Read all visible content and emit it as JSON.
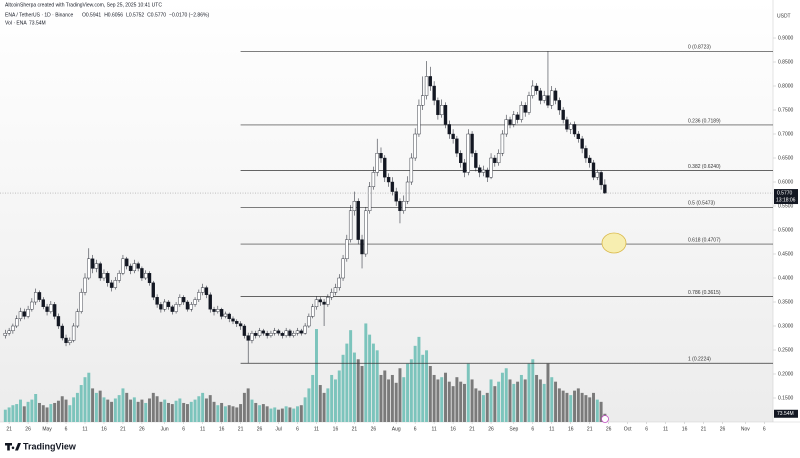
{
  "chart_data": {
    "type": "candlestick",
    "title": "AltcoinSherpa created with TradingView.com, Sep 25, 2025 10:41 UTC",
    "symbol": "ENA / TetherUS · 1D · Binance",
    "ohlc_labels": [
      "O0.5941",
      "H0.6056",
      "L0.5752",
      "C0.5770",
      "−0.0170 (−2.86%)"
    ],
    "volume_title": "Vol · ENA",
    "volume_value_label": "73.54M",
    "currency": "USDT",
    "brand": "TradingView",
    "countdown": "13:18:06",
    "up_color": "#ffffff",
    "down_color": "#131722",
    "volume_up_color": "#7cc4bc",
    "volume_down_color": "#7a7a7a",
    "candles": [
      [
        0.28,
        0.292,
        0.274,
        0.285
      ],
      [
        0.285,
        0.296,
        0.28,
        0.29
      ],
      [
        0.29,
        0.305,
        0.284,
        0.3
      ],
      [
        0.3,
        0.322,
        0.296,
        0.315
      ],
      [
        0.315,
        0.338,
        0.31,
        0.33
      ],
      [
        0.33,
        0.336,
        0.314,
        0.32
      ],
      [
        0.32,
        0.342,
        0.316,
        0.335
      ],
      [
        0.335,
        0.358,
        0.33,
        0.35
      ],
      [
        0.35,
        0.378,
        0.344,
        0.37
      ],
      [
        0.37,
        0.374,
        0.35,
        0.355
      ],
      [
        0.355,
        0.36,
        0.335,
        0.34
      ],
      [
        0.34,
        0.346,
        0.322,
        0.33
      ],
      [
        0.33,
        0.352,
        0.326,
        0.345
      ],
      [
        0.345,
        0.35,
        0.314,
        0.32
      ],
      [
        0.32,
        0.326,
        0.294,
        0.3
      ],
      [
        0.3,
        0.305,
        0.27,
        0.275
      ],
      [
        0.275,
        0.282,
        0.258,
        0.265
      ],
      [
        0.265,
        0.276,
        0.26,
        0.27
      ],
      [
        0.27,
        0.306,
        0.266,
        0.3
      ],
      [
        0.3,
        0.336,
        0.296,
        0.33
      ],
      [
        0.33,
        0.378,
        0.326,
        0.37
      ],
      [
        0.37,
        0.41,
        0.364,
        0.4
      ],
      [
        0.4,
        0.462,
        0.396,
        0.44
      ],
      [
        0.44,
        0.448,
        0.41,
        0.42
      ],
      [
        0.42,
        0.438,
        0.412,
        0.43
      ],
      [
        0.43,
        0.434,
        0.394,
        0.4
      ],
      [
        0.4,
        0.418,
        0.394,
        0.41
      ],
      [
        0.41,
        0.414,
        0.382,
        0.39
      ],
      [
        0.39,
        0.396,
        0.372,
        0.38
      ],
      [
        0.38,
        0.402,
        0.376,
        0.395
      ],
      [
        0.395,
        0.416,
        0.39,
        0.41
      ],
      [
        0.41,
        0.448,
        0.406,
        0.44
      ],
      [
        0.44,
        0.444,
        0.418,
        0.425
      ],
      [
        0.425,
        0.43,
        0.408,
        0.415
      ],
      [
        0.415,
        0.438,
        0.41,
        0.43
      ],
      [
        0.43,
        0.434,
        0.414,
        0.42
      ],
      [
        0.42,
        0.424,
        0.394,
        0.4
      ],
      [
        0.4,
        0.416,
        0.396,
        0.41
      ],
      [
        0.41,
        0.414,
        0.384,
        0.39
      ],
      [
        0.39,
        0.394,
        0.354,
        0.36
      ],
      [
        0.36,
        0.366,
        0.338,
        0.345
      ],
      [
        0.345,
        0.35,
        0.328,
        0.335
      ],
      [
        0.335,
        0.356,
        0.33,
        0.35
      ],
      [
        0.35,
        0.354,
        0.334,
        0.34
      ],
      [
        0.34,
        0.344,
        0.324,
        0.33
      ],
      [
        0.33,
        0.35,
        0.326,
        0.345
      ],
      [
        0.345,
        0.366,
        0.34,
        0.36
      ],
      [
        0.36,
        0.364,
        0.344,
        0.35
      ],
      [
        0.35,
        0.354,
        0.33,
        0.335
      ],
      [
        0.335,
        0.35,
        0.33,
        0.345
      ],
      [
        0.345,
        0.36,
        0.34,
        0.355
      ],
      [
        0.355,
        0.376,
        0.35,
        0.37
      ],
      [
        0.37,
        0.388,
        0.364,
        0.38
      ],
      [
        0.38,
        0.384,
        0.358,
        0.365
      ],
      [
        0.365,
        0.37,
        0.328,
        0.335
      ],
      [
        0.335,
        0.34,
        0.322,
        0.33
      ],
      [
        0.33,
        0.342,
        0.326,
        0.335
      ],
      [
        0.335,
        0.338,
        0.314,
        0.32
      ],
      [
        0.32,
        0.33,
        0.316,
        0.325
      ],
      [
        0.325,
        0.328,
        0.308,
        0.315
      ],
      [
        0.315,
        0.32,
        0.304,
        0.31
      ],
      [
        0.31,
        0.314,
        0.298,
        0.305
      ],
      [
        0.305,
        0.31,
        0.292,
        0.3
      ],
      [
        0.3,
        0.304,
        0.274,
        0.28
      ],
      [
        0.28,
        0.286,
        0.2224,
        0.27
      ],
      [
        0.27,
        0.29,
        0.264,
        0.285
      ],
      [
        0.285,
        0.29,
        0.274,
        0.28
      ],
      [
        0.28,
        0.296,
        0.276,
        0.29
      ],
      [
        0.29,
        0.294,
        0.28,
        0.285
      ],
      [
        0.285,
        0.29,
        0.274,
        0.28
      ],
      [
        0.28,
        0.29,
        0.276,
        0.285
      ],
      [
        0.285,
        0.296,
        0.28,
        0.29
      ],
      [
        0.29,
        0.294,
        0.28,
        0.285
      ],
      [
        0.285,
        0.288,
        0.274,
        0.28
      ],
      [
        0.28,
        0.296,
        0.276,
        0.29
      ],
      [
        0.29,
        0.294,
        0.276,
        0.28
      ],
      [
        0.28,
        0.29,
        0.276,
        0.285
      ],
      [
        0.285,
        0.296,
        0.28,
        0.29
      ],
      [
        0.29,
        0.294,
        0.28,
        0.285
      ],
      [
        0.285,
        0.306,
        0.282,
        0.3
      ],
      [
        0.3,
        0.326,
        0.296,
        0.32
      ],
      [
        0.32,
        0.346,
        0.316,
        0.34
      ],
      [
        0.34,
        0.362,
        0.334,
        0.355
      ],
      [
        0.355,
        0.36,
        0.342,
        0.35
      ],
      [
        0.35,
        0.356,
        0.3,
        0.345
      ],
      [
        0.345,
        0.366,
        0.34,
        0.36
      ],
      [
        0.36,
        0.378,
        0.354,
        0.37
      ],
      [
        0.37,
        0.388,
        0.364,
        0.38
      ],
      [
        0.38,
        0.408,
        0.374,
        0.4
      ],
      [
        0.4,
        0.448,
        0.394,
        0.44
      ],
      [
        0.44,
        0.49,
        0.434,
        0.48
      ],
      [
        0.48,
        0.552,
        0.474,
        0.54
      ],
      [
        0.54,
        0.58,
        0.53,
        0.56
      ],
      [
        0.56,
        0.566,
        0.47,
        0.48
      ],
      [
        0.48,
        0.49,
        0.42,
        0.45
      ],
      [
        0.45,
        0.548,
        0.444,
        0.54
      ],
      [
        0.54,
        0.6,
        0.534,
        0.59
      ],
      [
        0.59,
        0.632,
        0.584,
        0.62
      ],
      [
        0.62,
        0.69,
        0.612,
        0.66
      ],
      [
        0.66,
        0.672,
        0.64,
        0.65
      ],
      [
        0.65,
        0.656,
        0.6,
        0.61
      ],
      [
        0.61,
        0.618,
        0.59,
        0.6
      ],
      [
        0.6,
        0.61,
        0.572,
        0.58
      ],
      [
        0.58,
        0.588,
        0.55,
        0.56
      ],
      [
        0.56,
        0.566,
        0.514,
        0.54
      ],
      [
        0.54,
        0.572,
        0.534,
        0.56
      ],
      [
        0.56,
        0.612,
        0.554,
        0.6
      ],
      [
        0.6,
        0.66,
        0.594,
        0.65
      ],
      [
        0.65,
        0.712,
        0.644,
        0.7
      ],
      [
        0.7,
        0.772,
        0.694,
        0.76
      ],
      [
        0.76,
        0.82,
        0.75,
        0.78
      ],
      [
        0.78,
        0.852,
        0.772,
        0.82
      ],
      [
        0.82,
        0.84,
        0.79,
        0.8
      ],
      [
        0.8,
        0.81,
        0.76,
        0.77
      ],
      [
        0.77,
        0.776,
        0.73,
        0.74
      ],
      [
        0.74,
        0.772,
        0.734,
        0.76
      ],
      [
        0.76,
        0.766,
        0.712,
        0.72
      ],
      [
        0.72,
        0.728,
        0.69,
        0.7
      ],
      [
        0.7,
        0.71,
        0.68,
        0.69
      ],
      [
        0.69,
        0.696,
        0.652,
        0.66
      ],
      [
        0.66,
        0.666,
        0.63,
        0.64
      ],
      [
        0.64,
        0.648,
        0.61,
        0.62
      ],
      [
        0.62,
        0.71,
        0.614,
        0.7
      ],
      [
        0.7,
        0.706,
        0.652,
        0.66
      ],
      [
        0.66,
        0.666,
        0.622,
        0.63
      ],
      [
        0.63,
        0.636,
        0.61,
        0.62
      ],
      [
        0.62,
        0.634,
        0.612,
        0.625
      ],
      [
        0.625,
        0.63,
        0.6,
        0.61
      ],
      [
        0.61,
        0.66,
        0.606,
        0.65
      ],
      [
        0.65,
        0.656,
        0.632,
        0.64
      ],
      [
        0.64,
        0.668,
        0.634,
        0.66
      ],
      [
        0.66,
        0.708,
        0.654,
        0.7
      ],
      [
        0.7,
        0.74,
        0.694,
        0.73
      ],
      [
        0.73,
        0.736,
        0.712,
        0.72
      ],
      [
        0.72,
        0.748,
        0.714,
        0.74
      ],
      [
        0.74,
        0.746,
        0.722,
        0.73
      ],
      [
        0.73,
        0.768,
        0.724,
        0.76
      ],
      [
        0.76,
        0.766,
        0.736,
        0.745
      ],
      [
        0.745,
        0.788,
        0.74,
        0.78
      ],
      [
        0.78,
        0.812,
        0.774,
        0.8
      ],
      [
        0.8,
        0.806,
        0.782,
        0.79
      ],
      [
        0.79,
        0.796,
        0.762,
        0.77
      ],
      [
        0.77,
        0.79,
        0.764,
        0.78
      ],
      [
        0.78,
        0.8723,
        0.754,
        0.76
      ],
      [
        0.76,
        0.8,
        0.752,
        0.79
      ],
      [
        0.79,
        0.796,
        0.762,
        0.77
      ],
      [
        0.77,
        0.776,
        0.74,
        0.75
      ],
      [
        0.75,
        0.756,
        0.722,
        0.73
      ],
      [
        0.73,
        0.736,
        0.704,
        0.71
      ],
      [
        0.71,
        0.724,
        0.7,
        0.72
      ],
      [
        0.72,
        0.726,
        0.694,
        0.7
      ],
      [
        0.7,
        0.706,
        0.682,
        0.69
      ],
      [
        0.69,
        0.696,
        0.66,
        0.67
      ],
      [
        0.67,
        0.676,
        0.64,
        0.65
      ],
      [
        0.65,
        0.656,
        0.63,
        0.64
      ],
      [
        0.64,
        0.646,
        0.604,
        0.61
      ],
      [
        0.61,
        0.626,
        0.604,
        0.62
      ],
      [
        0.62,
        0.624,
        0.584,
        0.594
      ],
      [
        0.5941,
        0.6056,
        0.5752,
        0.577
      ]
    ],
    "volume": [
      110,
      130,
      150,
      160,
      200,
      140,
      180,
      200,
      250,
      170,
      150,
      130,
      160,
      170,
      190,
      230,
      200,
      150,
      220,
      260,
      330,
      400,
      440,
      300,
      260,
      280,
      220,
      200,
      180,
      210,
      240,
      300,
      260,
      200,
      220,
      180,
      200,
      170,
      210,
      260,
      230,
      180,
      200,
      170,
      160,
      190,
      210,
      170,
      160,
      180,
      200,
      230,
      260,
      210,
      240,
      180,
      150,
      170,
      140,
      150,
      140,
      130,
      160,
      260,
      300,
      200,
      170,
      150,
      160,
      140,
      120,
      130,
      110,
      120,
      140,
      130,
      120,
      140,
      150,
      220,
      300,
      420,
      830,
      330,
      260,
      300,
      420,
      380,
      460,
      600,
      700,
      820,
      620,
      560,
      500,
      880,
      780,
      700,
      640,
      420,
      460,
      380,
      420,
      350,
      480,
      400,
      520,
      560,
      680,
      760,
      600,
      640,
      500,
      420,
      380,
      400,
      440,
      360,
      320,
      400,
      360,
      340,
      520,
      380,
      300,
      280,
      240,
      260,
      380,
      320,
      360,
      440,
      480,
      380,
      340,
      360,
      420,
      380,
      520,
      560,
      420,
      380,
      340,
      520,
      400,
      360,
      300,
      280,
      260,
      240,
      280,
      300,
      260,
      240,
      220,
      260,
      200,
      180,
      73.54
    ],
    "vlim": [
      0,
      1000
    ],
    "xlim": [
      -1.4,
      202.3
    ],
    "xticks": [
      {
        "value": 1,
        "label": "21"
      },
      {
        "value": 6,
        "label": "26"
      },
      {
        "value": 11,
        "label": "May"
      },
      {
        "value": 16,
        "label": "6"
      },
      {
        "value": 21,
        "label": "11"
      },
      {
        "value": 26,
        "label": "16"
      },
      {
        "value": 31,
        "label": "21"
      },
      {
        "value": 36,
        "label": "26"
      },
      {
        "value": 42,
        "label": "Jun"
      },
      {
        "value": 47,
        "label": "6"
      },
      {
        "value": 52,
        "label": "11"
      },
      {
        "value": 57,
        "label": "16"
      },
      {
        "value": 62,
        "label": "21"
      },
      {
        "value": 67,
        "label": "26"
      },
      {
        "value": 72,
        "label": "Jul"
      },
      {
        "value": 77,
        "label": "6"
      },
      {
        "value": 82,
        "label": "11"
      },
      {
        "value": 87,
        "label": "16"
      },
      {
        "value": 92,
        "label": "21"
      },
      {
        "value": 97,
        "label": "26"
      },
      {
        "value": 103,
        "label": "Aug"
      },
      {
        "value": 108,
        "label": "6"
      },
      {
        "value": 113,
        "label": "11"
      },
      {
        "value": 118,
        "label": "16"
      },
      {
        "value": 123,
        "label": "21"
      },
      {
        "value": 128,
        "label": "26"
      },
      {
        "value": 134,
        "label": "Sep"
      },
      {
        "value": 139,
        "label": "6"
      },
      {
        "value": 144,
        "label": "11"
      },
      {
        "value": 149,
        "label": "16"
      },
      {
        "value": 154,
        "label": "21"
      },
      {
        "value": 159,
        "label": "26"
      },
      {
        "value": 164,
        "label": "Oct"
      },
      {
        "value": 169,
        "label": "6"
      },
      {
        "value": 174,
        "label": "11"
      },
      {
        "value": 179,
        "label": "16"
      },
      {
        "value": 184,
        "label": "21"
      },
      {
        "value": 189,
        "label": "26"
      },
      {
        "value": 195,
        "label": "Nov"
      },
      {
        "value": 200,
        "label": "6"
      }
    ],
    "ylim": [
      0.1,
      0.9167
    ],
    "yticks": [
      {
        "value": 0.9,
        "label": "0.9000"
      },
      {
        "value": 0.85,
        "label": "0.8500"
      },
      {
        "value": 0.8,
        "label": "0.8000"
      },
      {
        "value": 0.75,
        "label": "0.7500"
      },
      {
        "value": 0.7,
        "label": "0.7000"
      },
      {
        "value": 0.65,
        "label": "0.6500"
      },
      {
        "value": 0.6,
        "label": "0.6000"
      },
      {
        "value": 0.55,
        "label": "0.5500"
      },
      {
        "value": 0.5,
        "label": "0.5000"
      },
      {
        "value": 0.45,
        "label": "0.4500"
      },
      {
        "value": 0.4,
        "label": "0.4000"
      },
      {
        "value": 0.35,
        "label": "0.3500"
      },
      {
        "value": 0.3,
        "label": "0.3000"
      },
      {
        "value": 0.25,
        "label": "0.2500"
      },
      {
        "value": 0.2,
        "label": "0.2000"
      },
      {
        "value": 0.15,
        "label": "0.1500"
      }
    ],
    "last_price": {
      "value": 0.577,
      "label": "0.5770"
    },
    "fib_start": 62,
    "fib_levels": [
      {
        "value": 0.8723,
        "label": "0 (0.8723)"
      },
      {
        "value": 0.7189,
        "label": "0.236 (0.7189)"
      },
      {
        "value": 0.624,
        "label": "0.382 (0.6240)"
      },
      {
        "value": 0.5473,
        "label": "0.5 (0.5473)"
      },
      {
        "value": 0.4707,
        "label": "0.618 (0.4707)"
      },
      {
        "value": 0.3615,
        "label": "0.786 (0.3615)"
      },
      {
        "value": 0.2224,
        "label": "1 (0.2224)"
      }
    ]
  }
}
